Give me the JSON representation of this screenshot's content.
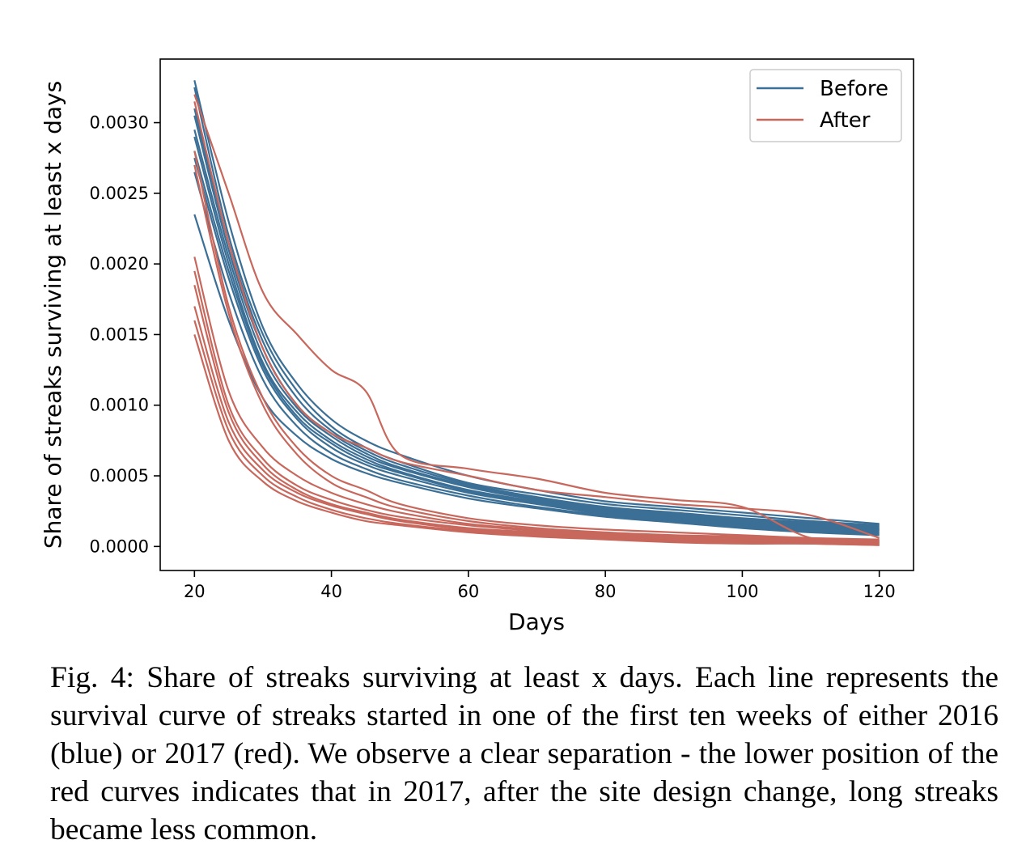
{
  "chart_data": {
    "type": "line",
    "xlabel": "Days",
    "ylabel": "Share of streaks surviving at least x days",
    "xlim": [
      15,
      125
    ],
    "ylim": [
      -0.00017,
      0.00345
    ],
    "xticks": [
      20,
      40,
      60,
      80,
      100,
      120
    ],
    "xtick_labels": [
      "20",
      "40",
      "60",
      "80",
      "100",
      "120"
    ],
    "yticks": [
      0,
      0.0005,
      0.001,
      0.0015,
      0.002,
      0.0025,
      0.003
    ],
    "ytick_labels": [
      "0.0000",
      "0.0005",
      "0.0010",
      "0.0015",
      "0.0020",
      "0.0025",
      "0.0030"
    ],
    "grid": false,
    "legend": {
      "placement": "top-right",
      "entries": [
        {
          "label": "Before",
          "color": "#3b6f96"
        },
        {
          "label": "After",
          "color": "#c8675c"
        }
      ]
    },
    "x": [
      20,
      25,
      30,
      35,
      40,
      45,
      50,
      60,
      70,
      80,
      90,
      100,
      110,
      120
    ],
    "series": [
      {
        "group": "Before",
        "values": [
          0.0033,
          0.0023,
          0.00155,
          0.00115,
          0.0009,
          0.00075,
          0.00065,
          0.0005,
          0.0004,
          0.00032,
          0.00028,
          0.00024,
          0.0002,
          0.00016
        ]
      },
      {
        "group": "Before",
        "values": [
          0.00325,
          0.0022,
          0.0015,
          0.0011,
          0.00085,
          0.0007,
          0.0006,
          0.00045,
          0.00037,
          0.0003,
          0.00026,
          0.00022,
          0.00018,
          0.00015
        ]
      },
      {
        "group": "Before",
        "values": [
          0.0031,
          0.00215,
          0.00145,
          0.00105,
          0.00082,
          0.00068,
          0.00058,
          0.00044,
          0.00035,
          0.00028,
          0.00024,
          0.0002,
          0.00017,
          0.00014
        ]
      },
      {
        "group": "Before",
        "values": [
          0.00305,
          0.0021,
          0.0014,
          0.001,
          0.0008,
          0.00066,
          0.00056,
          0.00043,
          0.00034,
          0.00027,
          0.00023,
          0.00019,
          0.00016,
          0.00013
        ]
      },
      {
        "group": "Before",
        "values": [
          0.00295,
          0.00205,
          0.00135,
          0.00098,
          0.00078,
          0.00064,
          0.00055,
          0.00042,
          0.00033,
          0.00026,
          0.00022,
          0.00018,
          0.00015,
          0.00012
        ]
      },
      {
        "group": "Before",
        "values": [
          0.0029,
          0.002,
          0.0013,
          0.00095,
          0.00075,
          0.00062,
          0.00053,
          0.0004,
          0.00032,
          0.00025,
          0.00021,
          0.00017,
          0.00014,
          0.00012
        ]
      },
      {
        "group": "Before",
        "values": [
          0.0028,
          0.00195,
          0.00128,
          0.00092,
          0.00073,
          0.0006,
          0.00052,
          0.00039,
          0.00031,
          0.00024,
          0.0002,
          0.00016,
          0.00013,
          0.00011
        ]
      },
      {
        "group": "Before",
        "values": [
          0.00275,
          0.0019,
          0.00125,
          0.0009,
          0.0007,
          0.00058,
          0.0005,
          0.00038,
          0.0003,
          0.00023,
          0.00019,
          0.00015,
          0.00012,
          0.0001
        ]
      },
      {
        "group": "Before",
        "values": [
          0.00265,
          0.0018,
          0.00118,
          0.00085,
          0.00066,
          0.00055,
          0.00047,
          0.00036,
          0.00028,
          0.00022,
          0.00018,
          0.00014,
          0.00011,
          9e-05
        ]
      },
      {
        "group": "Before",
        "values": [
          0.00235,
          0.0016,
          0.00105,
          0.00078,
          0.00062,
          0.00052,
          0.00045,
          0.00034,
          0.00027,
          0.00021,
          0.00017,
          0.00013,
          0.0001,
          8e-05
        ]
      },
      {
        "group": "After",
        "values": [
          0.0032,
          0.0025,
          0.0018,
          0.0015,
          0.00125,
          0.0011,
          0.00065,
          0.00055,
          0.00048,
          0.00038,
          0.00033,
          0.00028,
          6e-05,
          4e-05
        ]
      },
      {
        "group": "After",
        "values": [
          0.00315,
          0.00215,
          0.0014,
          0.001,
          0.0008,
          0.0007,
          0.0006,
          0.0005,
          0.0004,
          0.00035,
          0.0003,
          0.00027,
          0.00022,
          6e-05
        ]
      },
      {
        "group": "After",
        "values": [
          0.0028,
          0.0017,
          0.00105,
          0.0007,
          0.0005,
          0.0004,
          0.0003,
          0.0002,
          0.00015,
          0.00012,
          0.0001,
          8e-05,
          6e-05,
          5e-05
        ]
      },
      {
        "group": "After",
        "values": [
          0.0027,
          0.00165,
          0.001,
          0.00065,
          0.00045,
          0.00035,
          0.00027,
          0.00018,
          0.00013,
          0.0001,
          8e-05,
          7e-05,
          5e-05,
          4e-05
        ]
      },
      {
        "group": "After",
        "values": [
          0.00205,
          0.0011,
          0.0007,
          0.0005,
          0.00038,
          0.0003,
          0.00024,
          0.00016,
          0.00012,
          9e-05,
          7e-05,
          6e-05,
          4e-05,
          3e-05
        ]
      },
      {
        "group": "After",
        "values": [
          0.00195,
          0.001,
          0.00062,
          0.00043,
          0.00033,
          0.00026,
          0.00021,
          0.00015,
          0.00011,
          8e-05,
          6e-05,
          5e-05,
          4e-05,
          3e-05
        ]
      },
      {
        "group": "After",
        "values": [
          0.00185,
          0.00095,
          0.00058,
          0.0004,
          0.0003,
          0.00024,
          0.00019,
          0.00013,
          0.0001,
          7e-05,
          5e-05,
          4e-05,
          3e-05,
          2e-05
        ]
      },
      {
        "group": "After",
        "values": [
          0.0017,
          0.00088,
          0.00054,
          0.00038,
          0.00029,
          0.00023,
          0.00018,
          0.00012,
          9e-05,
          6e-05,
          4e-05,
          3e-05,
          2e-05,
          2e-05
        ]
      },
      {
        "group": "After",
        "values": [
          0.0016,
          0.00082,
          0.0005,
          0.00035,
          0.00026,
          0.0002,
          0.00016,
          0.00011,
          8e-05,
          6e-05,
          4e-05,
          3e-05,
          2e-05,
          1e-05
        ]
      },
      {
        "group": "After",
        "values": [
          0.0015,
          0.00075,
          0.00046,
          0.00032,
          0.00024,
          0.00018,
          0.00015,
          0.0001,
          7e-05,
          5e-05,
          3e-05,
          2e-05,
          2e-05,
          1e-05
        ]
      }
    ]
  },
  "caption": "Fig. 4: Share of streaks surviving at least x days. Each line represents the survival curve of streaks started in one of the first ten weeks of either 2016 (blue) or 2017 (red). We observe a clear separation - the lower position of the red curves indicates that in 2017, after the site design change, long streaks became less common."
}
